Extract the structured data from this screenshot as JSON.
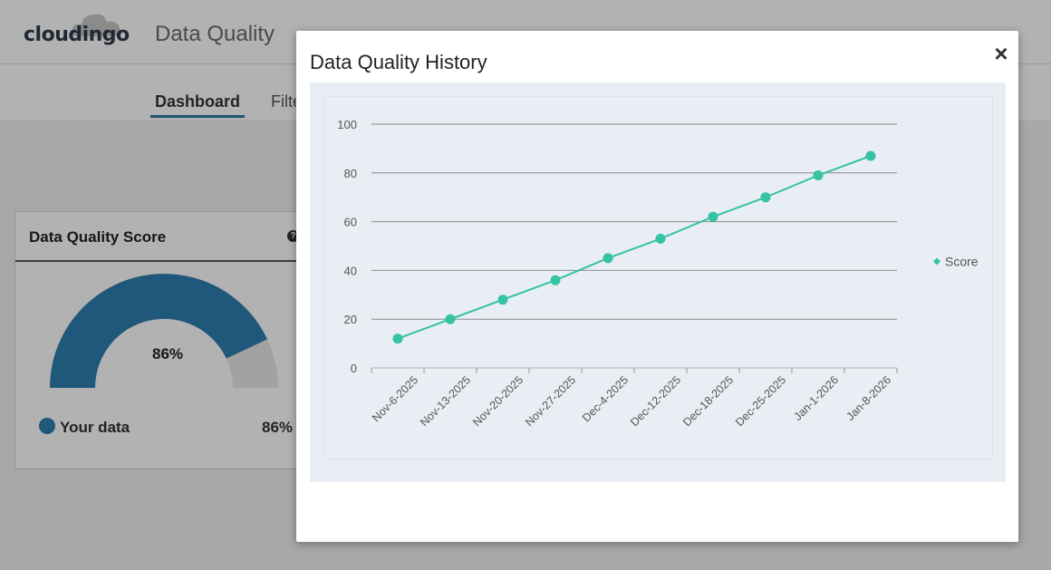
{
  "app": {
    "logo_text": "cloudingo",
    "title": "Data Quality",
    "tabs": [
      {
        "label": "Dashboard",
        "active": true
      },
      {
        "label": "Filte"
      }
    ]
  },
  "score_card": {
    "title": "Data Quality Score",
    "help_icon": "question-circle-icon",
    "gauge_value": "86%",
    "gauge_fraction": 0.86,
    "legend_label": "Your data",
    "legend_value": "86%",
    "colors": {
      "gauge": "#2e7fb1",
      "gauge_track": "#e8e8e8"
    }
  },
  "modal": {
    "title": "Data Quality History",
    "close_label": "×"
  },
  "chart_data": {
    "type": "line",
    "title": "",
    "xlabel": "",
    "ylabel": "",
    "categories": [
      "Nov-6-2025",
      "Nov-13-2025",
      "Nov-20-2025",
      "Nov-27-2025",
      "Dec-4-2025",
      "Dec-12-2025",
      "Dec-18-2025",
      "Dec-25-2025",
      "Jan-1-2026",
      "Jan-8-2026"
    ],
    "series": [
      {
        "name": "Score",
        "values": [
          12,
          20,
          28,
          36,
          45,
          53,
          62,
          70,
          79,
          87
        ],
        "color": "#35c2a5"
      }
    ],
    "ylim": [
      0,
      100
    ],
    "yticks": [
      0,
      20,
      40,
      60,
      80,
      100
    ],
    "grid": true,
    "legend_position": "right"
  }
}
